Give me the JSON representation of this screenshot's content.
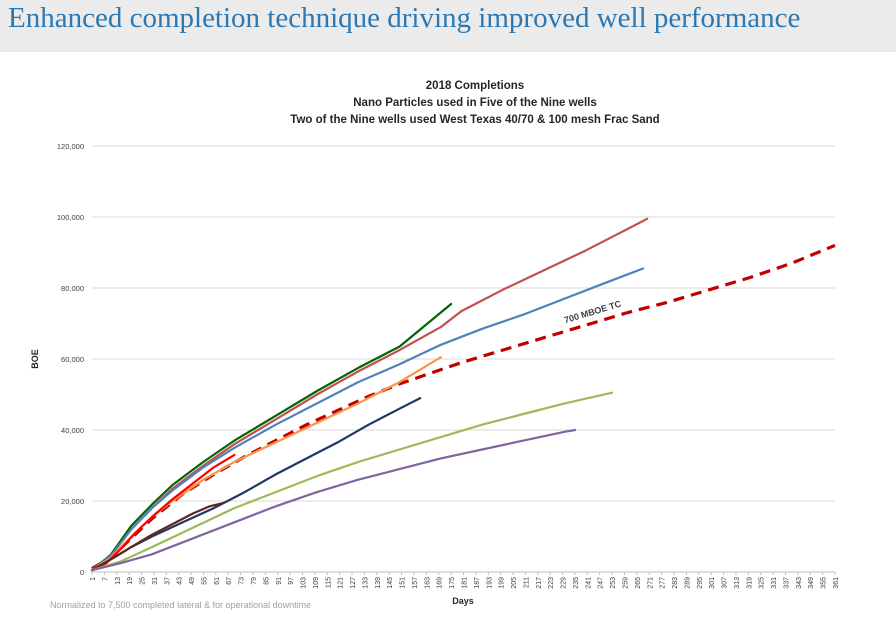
{
  "header": {
    "title": "Enhanced completion technique driving improved well performance"
  },
  "footnote": "Normalized to 7,500 completed lateral & for operational downtime",
  "colors": {
    "header_bg": "#ebebeb",
    "title": "#2a78b4"
  },
  "chart_data": {
    "type": "line",
    "title": [
      "2018 Completions",
      "Nano Particles used in Five of the Nine wells",
      "Two of the Nine wells used West Texas 40/70 & 100 mesh Frac Sand"
    ],
    "xlabel": "Days",
    "ylabel": "BOE",
    "xlim": [
      1,
      361
    ],
    "ylim": [
      0,
      120000
    ],
    "grid": true,
    "x_tick_labels": [
      1,
      7,
      13,
      19,
      25,
      31,
      37,
      43,
      49,
      55,
      61,
      67,
      73,
      79,
      85,
      91,
      97,
      103,
      109,
      115,
      121,
      127,
      133,
      139,
      145,
      151,
      157,
      163,
      169,
      175,
      181,
      187,
      193,
      199,
      205,
      211,
      217,
      223,
      229,
      235,
      241,
      247,
      253,
      259,
      265,
      271,
      277,
      283,
      289,
      295,
      301,
      307,
      313,
      319,
      325,
      331,
      337,
      343,
      349,
      355,
      361
    ],
    "y_ticks": [
      0,
      20000,
      40000,
      60000,
      80000,
      100000,
      120000
    ],
    "y_tick_labels": [
      "0",
      "20,000",
      "40,000",
      "60,000",
      "80,000",
      "100,000",
      "120,000"
    ],
    "annotations": [
      {
        "text": "700 MBOE TC",
        "series": "700 MBOE TC",
        "at_x": 244
      }
    ],
    "series": [
      {
        "name": "700 MBOE TC",
        "color": "#c00000",
        "dashed": true,
        "points": [
          [
            1,
            1000
          ],
          [
            10,
            4000
          ],
          [
            20,
            9500
          ],
          [
            30,
            15000
          ],
          [
            45,
            22000
          ],
          [
            60,
            27500
          ],
          [
            75,
            32500
          ],
          [
            90,
            37000
          ],
          [
            105,
            41500
          ],
          [
            120,
            45500
          ],
          [
            135,
            49500
          ],
          [
            150,
            53000
          ],
          [
            165,
            56000
          ],
          [
            180,
            59000
          ],
          [
            200,
            62500
          ],
          [
            220,
            66000
          ],
          [
            240,
            69500
          ],
          [
            260,
            73000
          ],
          [
            280,
            76000
          ],
          [
            300,
            79500
          ],
          [
            320,
            83000
          ],
          [
            340,
            87000
          ],
          [
            361,
            92000
          ]
        ]
      },
      {
        "color": "#c0504d",
        "points": [
          [
            1,
            500
          ],
          [
            10,
            4500
          ],
          [
            20,
            12000
          ],
          [
            30,
            18000
          ],
          [
            40,
            23500
          ],
          [
            55,
            30000
          ],
          [
            70,
            36000
          ],
          [
            90,
            43000
          ],
          [
            110,
            50000
          ],
          [
            130,
            56500
          ],
          [
            150,
            62500
          ],
          [
            170,
            69000
          ],
          [
            180,
            73500
          ],
          [
            200,
            79500
          ],
          [
            220,
            85000
          ],
          [
            240,
            90500
          ],
          [
            255,
            95000
          ],
          [
            270,
            99500
          ]
        ]
      },
      {
        "color": "#006400",
        "points": [
          [
            1,
            500
          ],
          [
            10,
            4800
          ],
          [
            20,
            13000
          ],
          [
            30,
            19000
          ],
          [
            40,
            24500
          ],
          [
            55,
            31000
          ],
          [
            70,
            37000
          ],
          [
            90,
            44000
          ],
          [
            110,
            51000
          ],
          [
            130,
            57500
          ],
          [
            150,
            63500
          ],
          [
            175,
            75500
          ]
        ]
      },
      {
        "color": "#4f81bd",
        "points": [
          [
            1,
            500
          ],
          [
            10,
            4500
          ],
          [
            20,
            12000
          ],
          [
            30,
            18000
          ],
          [
            40,
            23000
          ],
          [
            55,
            29500
          ],
          [
            70,
            35000
          ],
          [
            90,
            41500
          ],
          [
            110,
            47500
          ],
          [
            130,
            53500
          ],
          [
            150,
            58500
          ],
          [
            170,
            64000
          ],
          [
            190,
            68500
          ],
          [
            210,
            72500
          ],
          [
            230,
            77000
          ],
          [
            250,
            81500
          ],
          [
            268,
            85500
          ]
        ]
      },
      {
        "color": "#f79646",
        "points": [
          [
            1,
            500
          ],
          [
            10,
            4000
          ],
          [
            20,
            10000
          ],
          [
            30,
            15500
          ],
          [
            40,
            20000
          ],
          [
            55,
            26000
          ],
          [
            70,
            31000
          ],
          [
            90,
            36500
          ],
          [
            110,
            42000
          ],
          [
            130,
            47500
          ],
          [
            150,
            53500
          ],
          [
            170,
            60500
          ]
        ]
      },
      {
        "color": "#ff0000",
        "points": [
          [
            1,
            500
          ],
          [
            8,
            2500
          ],
          [
            15,
            6500
          ],
          [
            22,
            11000
          ],
          [
            30,
            15500
          ],
          [
            40,
            20500
          ],
          [
            50,
            25000
          ],
          [
            60,
            29500
          ],
          [
            70,
            33000
          ]
        ]
      },
      {
        "color": "#1f3864",
        "points": [
          [
            1,
            500
          ],
          [
            10,
            3500
          ],
          [
            20,
            7000
          ],
          [
            30,
            10000
          ],
          [
            45,
            14000
          ],
          [
            60,
            18000
          ],
          [
            75,
            22500
          ],
          [
            90,
            27500
          ],
          [
            105,
            32000
          ],
          [
            120,
            36500
          ],
          [
            135,
            41500
          ],
          [
            150,
            46000
          ],
          [
            160,
            49000
          ]
        ]
      },
      {
        "color": "#632523",
        "points": [
          [
            1,
            500
          ],
          [
            10,
            3500
          ],
          [
            20,
            7000
          ],
          [
            30,
            10500
          ],
          [
            40,
            13500
          ],
          [
            50,
            16500
          ],
          [
            58,
            18500
          ],
          [
            65,
            19500
          ]
        ]
      },
      {
        "color": "#9bbb59",
        "points": [
          [
            1,
            500
          ],
          [
            15,
            3000
          ],
          [
            30,
            7000
          ],
          [
            50,
            12500
          ],
          [
            70,
            18000
          ],
          [
            90,
            22500
          ],
          [
            110,
            27000
          ],
          [
            130,
            31000
          ],
          [
            150,
            34500
          ],
          [
            170,
            38000
          ],
          [
            190,
            41500
          ],
          [
            210,
            44500
          ],
          [
            230,
            47500
          ],
          [
            253,
            50500
          ]
        ]
      },
      {
        "color": "#8064a2",
        "points": [
          [
            1,
            500
          ],
          [
            15,
            2500
          ],
          [
            30,
            5000
          ],
          [
            50,
            9500
          ],
          [
            70,
            14000
          ],
          [
            90,
            18500
          ],
          [
            110,
            22500
          ],
          [
            130,
            26000
          ],
          [
            150,
            29000
          ],
          [
            170,
            32000
          ],
          [
            190,
            34500
          ],
          [
            210,
            37000
          ],
          [
            230,
            39500
          ],
          [
            235,
            40000
          ]
        ]
      }
    ]
  }
}
